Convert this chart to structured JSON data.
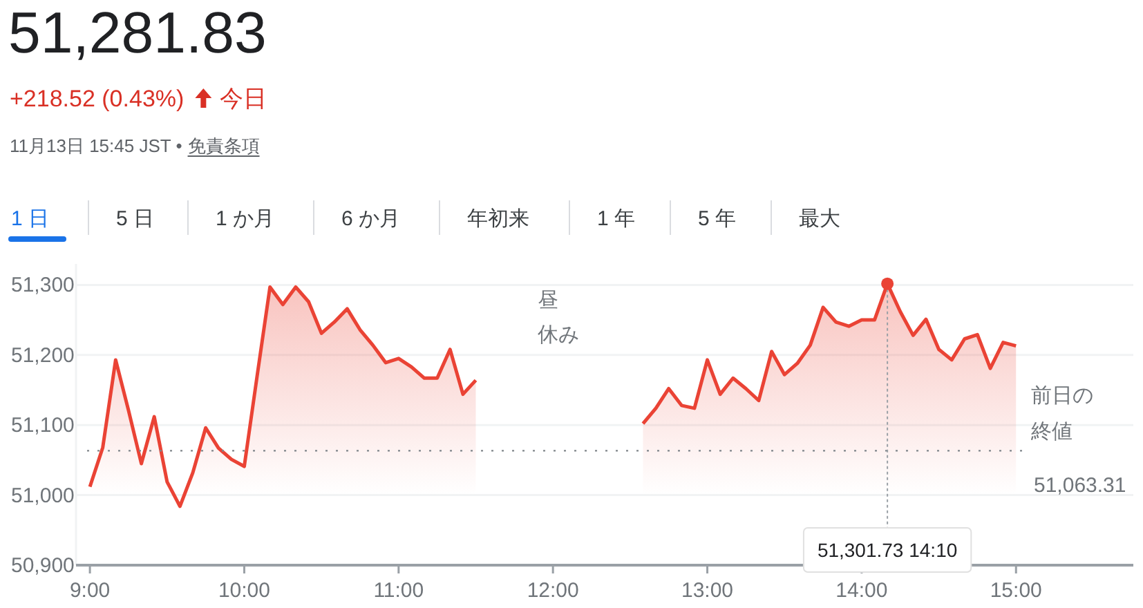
{
  "chart_data": {
    "type": "area",
    "title": "51,281.83",
    "subtitle": "+218.52 (0.43%)",
    "annotations": [
      "今日",
      "11月13日 15:45 JST •",
      "免責条項",
      "1 日",
      "5 日",
      "1 か月",
      "6 か月",
      "年初来",
      "1 年",
      "5 年",
      "最大",
      "昼",
      "休み",
      {
        "text": "51,301.73  14:10",
        "x": 14.1667,
        "y": 51301.73
      },
      "51,063.31"
    ],
    "x": [
      9,
      9.0833,
      9.1667,
      9.25,
      9.3333,
      9.4167,
      9.5,
      9.5833,
      9.6667,
      9.75,
      9.8333,
      9.9167,
      10,
      10.0833,
      10.1667,
      10.25,
      10.3333,
      10.4167,
      10.5,
      10.5833,
      10.6667,
      10.75,
      10.8333,
      10.9167,
      11,
      11.0833,
      11.1667,
      11.25,
      11.3333,
      11.4167,
      11.5,
      12,
      12.5833,
      12.6667,
      12.75,
      12.8333,
      12.9167,
      13,
      13.0833,
      13.1667,
      13.25,
      13.3333,
      13.4167,
      13.5,
      13.5833,
      13.6667,
      13.75,
      13.8333,
      13.9167,
      14,
      14.0833,
      14.1667,
      14.25,
      14.3333,
      14.4167,
      14.5,
      14.5833,
      14.6667,
      14.75,
      14.8333,
      14.9167,
      15
    ],
    "values": [
      51012,
      51068,
      51193,
      51121,
      51045,
      51112,
      51019,
      50984,
      51032,
      51096,
      51067,
      51051,
      51041,
      51170,
      51297,
      51272,
      51297,
      51276,
      51231,
      51247,
      51266,
      51236,
      51214,
      51189,
      51195,
      51183,
      51167,
      51167,
      51208,
      51144,
      51164,
      null,
      51102,
      51124,
      51152,
      51128,
      51124,
      51193,
      51144,
      51167,
      51152,
      51135,
      51205,
      51172,
      51188,
      51214,
      51268,
      51247,
      51241,
      51250,
      51250,
      51301.73,
      51262,
      51228,
      51251,
      51208,
      51193,
      51223,
      51229,
      51181,
      51218,
      51213
    ],
    "color": "#ea4335",
    "xlim": [
      8.91,
      15.76
    ],
    "ylim": [
      50900,
      51330
    ],
    "xticks": [
      {
        "value": 9,
        "label": "9:00"
      },
      {
        "value": 10,
        "label": "10:00"
      },
      {
        "value": 11,
        "label": "11:00"
      },
      {
        "value": 12,
        "label": "12:00"
      },
      {
        "value": 13,
        "label": "13:00"
      },
      {
        "value": 14,
        "label": "14:00"
      },
      {
        "value": 15,
        "label": "15:00"
      }
    ],
    "yticks": [
      {
        "value": 50900,
        "label": "50,900"
      },
      {
        "value": 51000,
        "label": "51,000"
      },
      {
        "value": 51100,
        "label": "51,100"
      },
      {
        "value": 51200,
        "label": "51,200"
      },
      {
        "value": 51300,
        "label": "51,300"
      }
    ],
    "grid": "y",
    "marker": "none",
    "ref_lines": [
      {
        "axis": "y",
        "value": 51063.31,
        "label": "前日の終値",
        "color": "#80868b",
        "line_style": "dotted"
      }
    ]
  }
}
